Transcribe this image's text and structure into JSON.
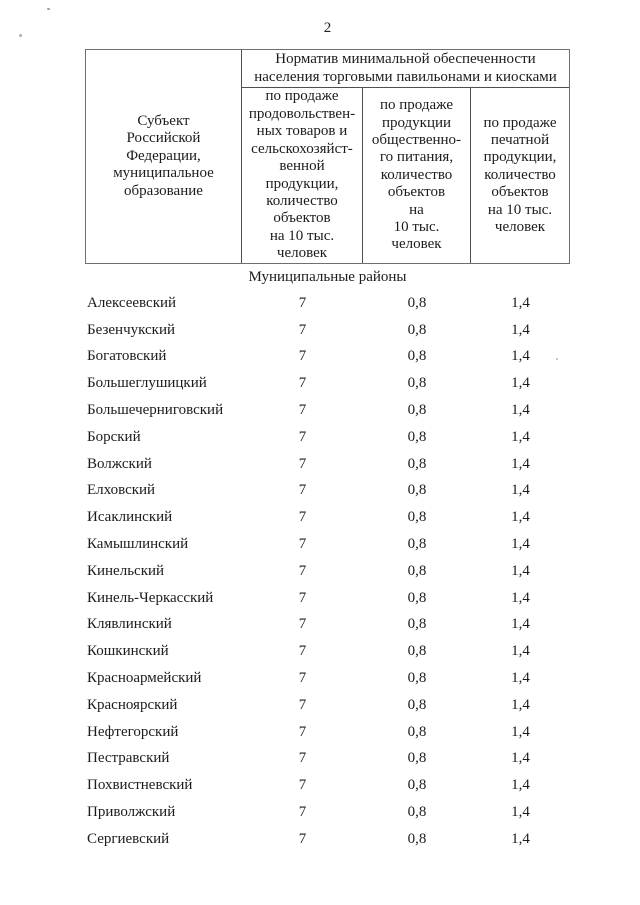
{
  "page_number": "2",
  "table": {
    "header": {
      "subject": "Субъект\nРоссийской\nФедерации,\nмуниципальное\nобразование",
      "group": "Норматив минимальной обеспеченности\nнаселения торговыми павильонами и киосками",
      "food": "по продаже\nпродовольствен-\nных товаров и\nсельскохозяйст-\nвенной\nпродукции,\nколичество\nобъектов\nна 10 тыс.\nчеловек",
      "catering": "по продаже\nпродукции\nобщественно-\nго питания,\nколичество\nобъектов\nна\n10 тыс.\nчеловек",
      "press": "по продаже\nпечатной\nпродукции,\nколичество\nобъектов\nна 10 тыс.\nчеловек"
    },
    "section_title": "Муниципальные районы",
    "rows": [
      {
        "name": "Алексеевский",
        "food": "7",
        "catering": "0,8",
        "press": "1,4"
      },
      {
        "name": "Безенчукский",
        "food": "7",
        "catering": "0,8",
        "press": "1,4"
      },
      {
        "name": "Богатовский",
        "food": "7",
        "catering": "0,8",
        "press": "1,4"
      },
      {
        "name": "Большеглушицкий",
        "food": "7",
        "catering": "0,8",
        "press": "1,4"
      },
      {
        "name": "Большечерниговский",
        "food": "7",
        "catering": "0,8",
        "press": "1,4"
      },
      {
        "name": "Борский",
        "food": "7",
        "catering": "0,8",
        "press": "1,4"
      },
      {
        "name": "Волжский",
        "food": "7",
        "catering": "0,8",
        "press": "1,4"
      },
      {
        "name": "Елховский",
        "food": "7",
        "catering": "0,8",
        "press": "1,4"
      },
      {
        "name": "Исаклинский",
        "food": "7",
        "catering": "0,8",
        "press": "1,4"
      },
      {
        "name": "Камышлинский",
        "food": "7",
        "catering": "0,8",
        "press": "1,4"
      },
      {
        "name": "Кинельский",
        "food": "7",
        "catering": "0,8",
        "press": "1,4"
      },
      {
        "name": "Кинель-Черкасский",
        "food": "7",
        "catering": "0,8",
        "press": "1,4"
      },
      {
        "name": "Клявлинский",
        "food": "7",
        "catering": "0,8",
        "press": "1,4"
      },
      {
        "name": "Кошкинский",
        "food": "7",
        "catering": "0,8",
        "press": "1,4"
      },
      {
        "name": "Красноармейский",
        "food": "7",
        "catering": "0,8",
        "press": "1,4"
      },
      {
        "name": "Красноярский",
        "food": "7",
        "catering": "0,8",
        "press": "1,4"
      },
      {
        "name": "Нефтегорский",
        "food": "7",
        "catering": "0,8",
        "press": "1,4"
      },
      {
        "name": "Пестравский",
        "food": "7",
        "catering": "0,8",
        "press": "1,4"
      },
      {
        "name": "Похвистневский",
        "food": "7",
        "catering": "0,8",
        "press": "1,4"
      },
      {
        "name": "Приволжский",
        "food": "7",
        "catering": "0,8",
        "press": "1,4"
      },
      {
        "name": "Сергиевский",
        "food": "7",
        "catering": "0,8",
        "press": "1,4"
      }
    ]
  }
}
